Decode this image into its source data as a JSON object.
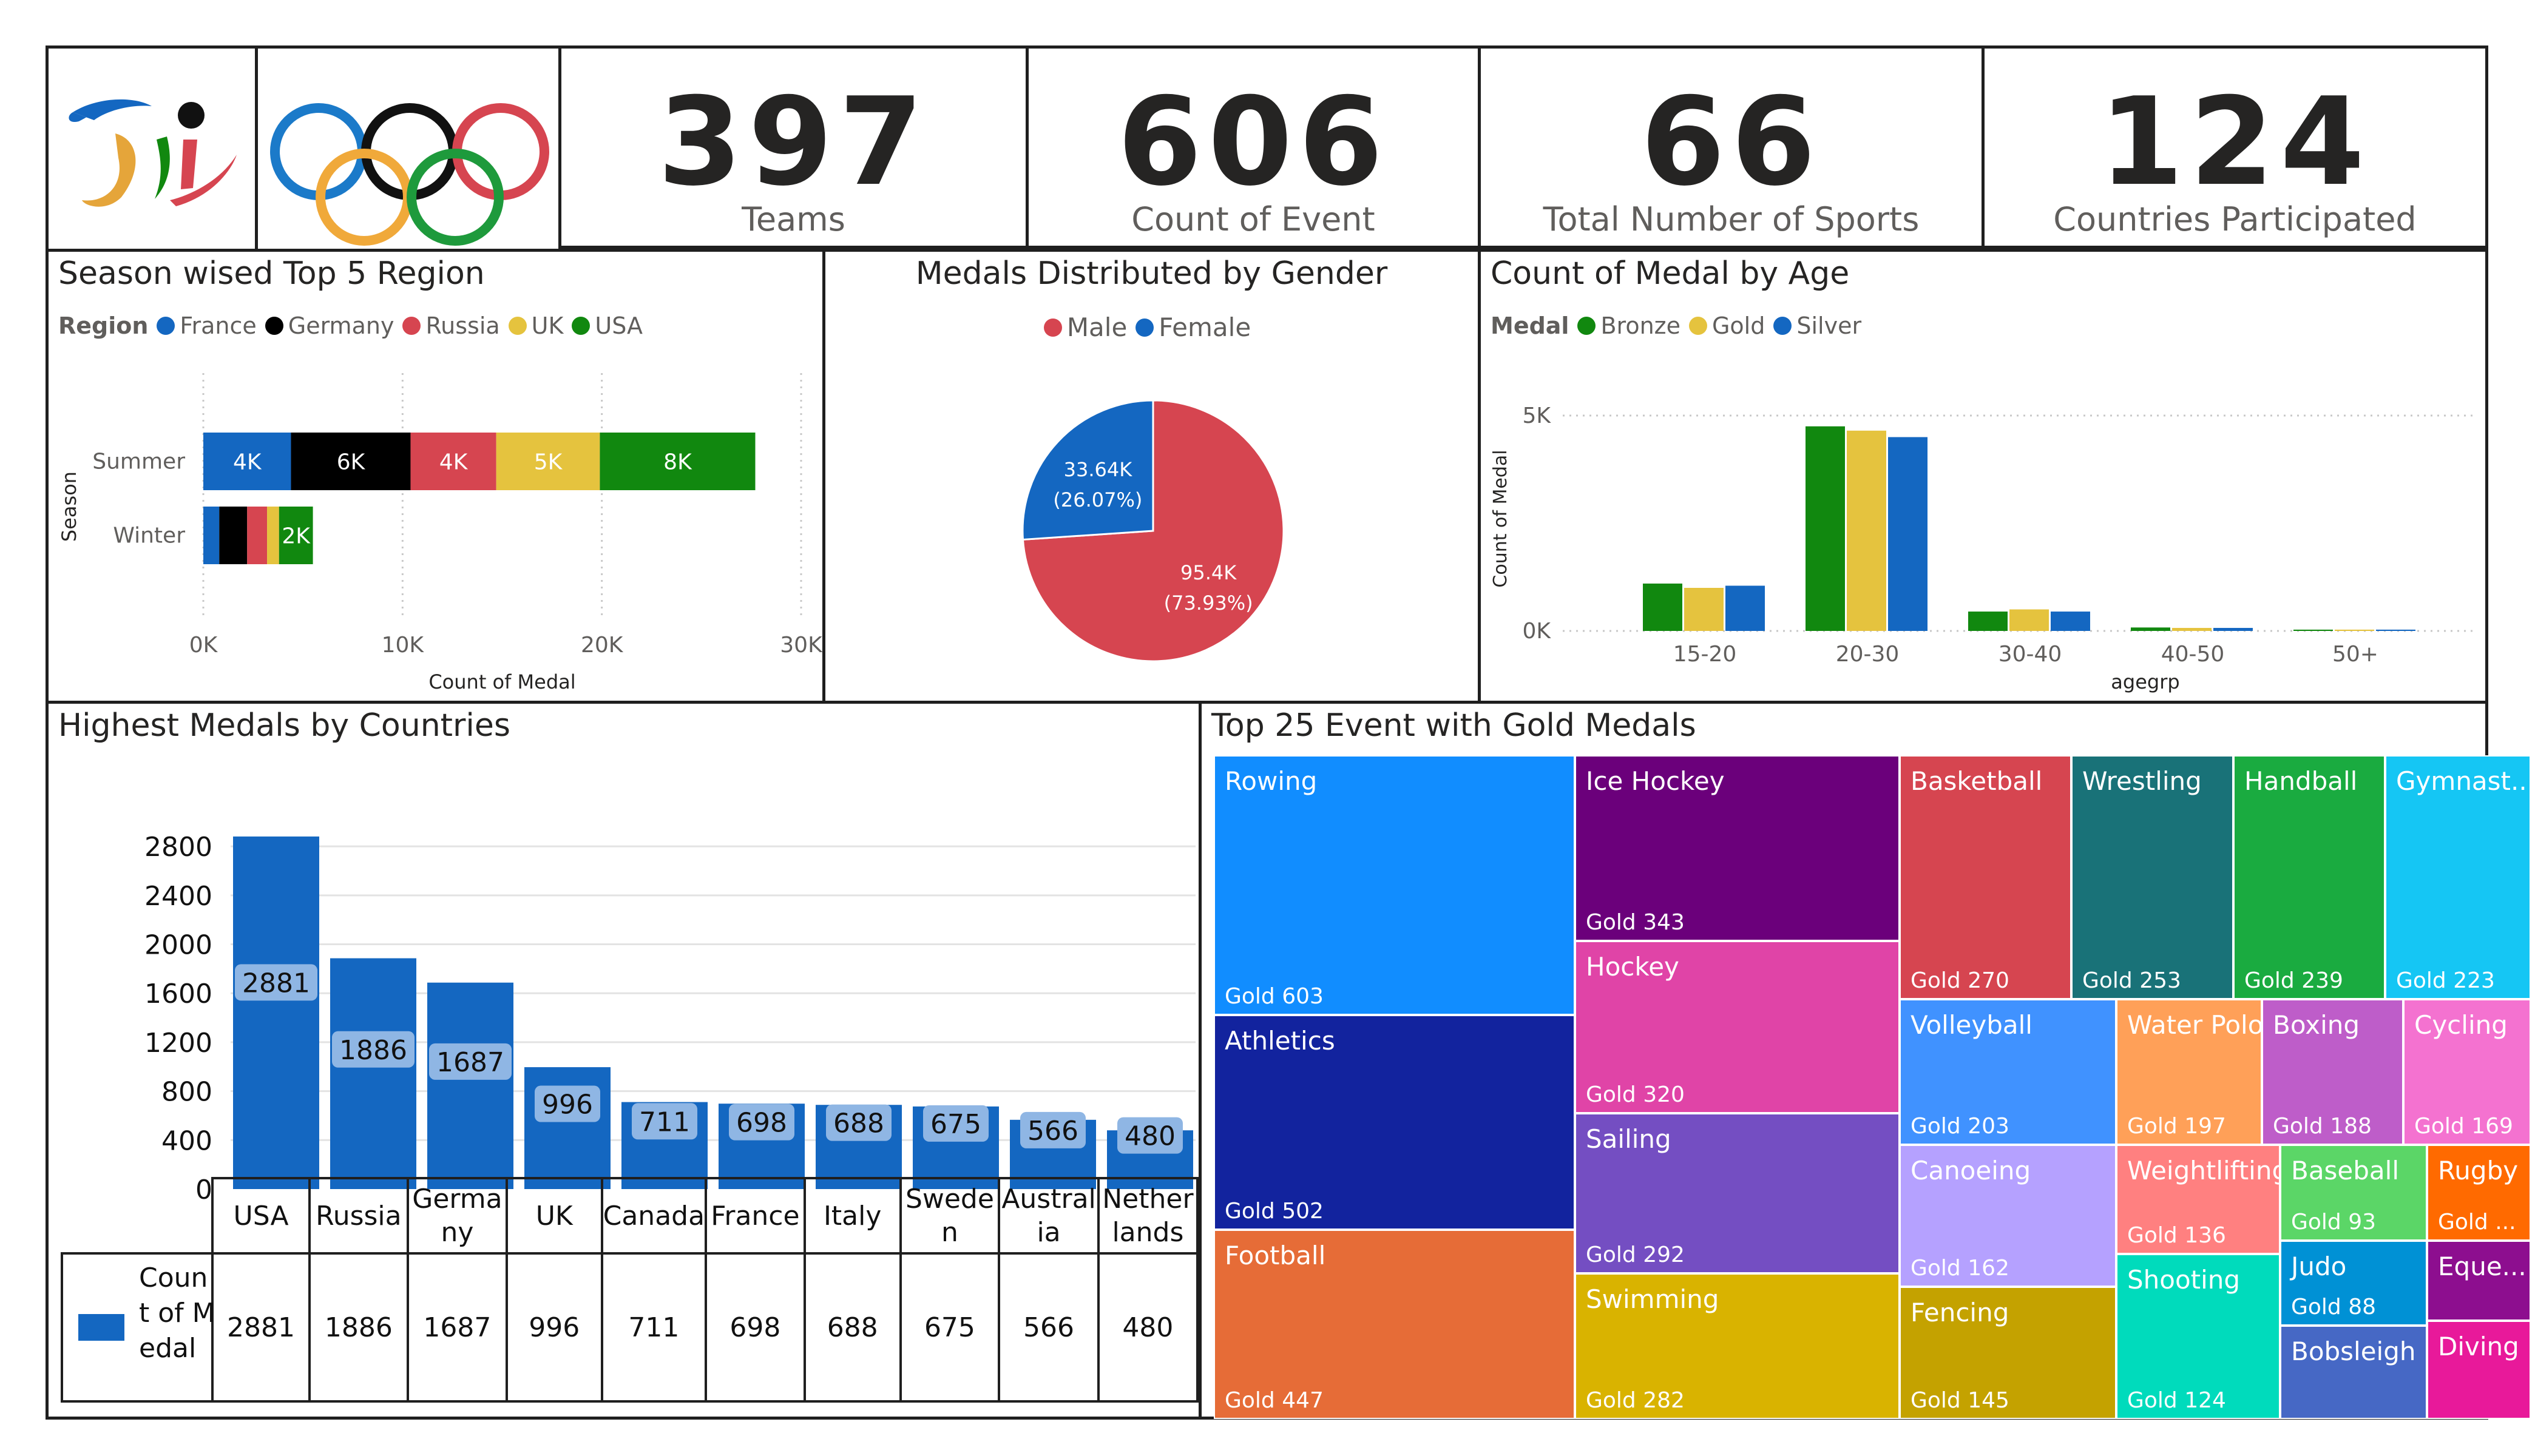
{
  "colors": {
    "france": "#1467c1",
    "germany": "#000000",
    "russia": "#d64550",
    "uk": "#e5c33e",
    "usa": "#11880f",
    "male": "#d64550",
    "female": "#1467c1",
    "bronze": "#11880f",
    "gold": "#e5c33e",
    "silver": "#1467c1",
    "bar": "#1467c1"
  },
  "logos": {
    "paralympic": "paralympic-logo",
    "olympic": "olympic-rings-logo"
  },
  "kpis": [
    {
      "value": "397",
      "label": "Teams"
    },
    {
      "value": "606",
      "label": "Count of Event"
    },
    {
      "value": "66",
      "label": "Total Number of Sports"
    },
    {
      "value": "124",
      "label": "Countries Participated"
    }
  ],
  "region_chart": {
    "title": "Season wised Top 5 Region",
    "legend_title": "Region",
    "legend": [
      "France",
      "Germany",
      "Russia",
      "UK",
      "USA"
    ]
  },
  "gender_chart": {
    "title": "Medals Distributed by Gender",
    "legend": [
      "Male",
      "Female"
    ]
  },
  "age_chart": {
    "title": "Count of Medal by Age",
    "legend_title": "Medal",
    "legend": [
      "Bronze",
      "Gold",
      "Silver"
    ]
  },
  "country_chart": {
    "title": "Highest Medals by Countries",
    "table_legend": "Count of Medal"
  },
  "treemap": {
    "title": "Top 25 Event with Gold Medals",
    "tiles": [
      {
        "name": "Rowing",
        "value": "Gold 603",
        "color": "#118dff"
      },
      {
        "name": "Athletics",
        "value": "Gold 502",
        "color": "#12239e"
      },
      {
        "name": "Football",
        "value": "Gold 447",
        "color": "#e66c37"
      },
      {
        "name": "Ice Hockey",
        "value": "Gold 343",
        "color": "#6b007b"
      },
      {
        "name": "Hockey",
        "value": "Gold 320",
        "color": "#e044a7"
      },
      {
        "name": "Sailing",
        "value": "Gold 292",
        "color": "#744ec2"
      },
      {
        "name": "Swimming",
        "value": "Gold 282",
        "color": "#d9b300"
      },
      {
        "name": "Basketball",
        "value": "Gold 270",
        "color": "#d64550"
      },
      {
        "name": "Wrestling",
        "value": "Gold 253",
        "color": "#197278"
      },
      {
        "name": "Handball",
        "value": "Gold 239",
        "color": "#1aab40"
      },
      {
        "name": "Gymnast...",
        "value": "Gold 223",
        "color": "#15c6f4"
      },
      {
        "name": "Volleyball",
        "value": "Gold 203",
        "color": "#4092ff"
      },
      {
        "name": "Water Polo",
        "value": "Gold 197",
        "color": "#ffa058"
      },
      {
        "name": "Boxing",
        "value": "Gold 188",
        "color": "#be5dc9"
      },
      {
        "name": "Cycling",
        "value": "Gold 169",
        "color": "#f472d0"
      },
      {
        "name": "Canoeing",
        "value": "Gold 162",
        "color": "#b5a1ff"
      },
      {
        "name": "Fencing",
        "value": "Gold 145",
        "color": "#c4a200"
      },
      {
        "name": "Weightlifting",
        "value": "Gold 136",
        "color": "#ff8080"
      },
      {
        "name": "Shooting",
        "value": "Gold 124",
        "color": "#00dbbc"
      },
      {
        "name": "Baseball",
        "value": "Gold 93",
        "color": "#5bd667"
      },
      {
        "name": "Rugby",
        "value": "Gold ...",
        "color": "#ff6a00"
      },
      {
        "name": "Judo",
        "value": "Gold 88",
        "color": "#0091d5"
      },
      {
        "name": "Bobsleigh",
        "value": "",
        "color": "#4668c5"
      },
      {
        "name": "Eque...",
        "value": "",
        "color": "#8d0e8f"
      },
      {
        "name": "Diving",
        "value": "",
        "color": "#e8199a"
      }
    ]
  },
  "chart_data": [
    {
      "type": "bar",
      "orientation": "horizontal",
      "stacked": true,
      "title": "Season wised Top 5 Region",
      "categories": [
        "Summer",
        "Winter"
      ],
      "series": [
        {
          "name": "France",
          "values": [
            4400,
            800
          ],
          "labels": [
            "4K",
            ""
          ]
        },
        {
          "name": "Germany",
          "values": [
            6000,
            1400
          ],
          "labels": [
            "6K",
            ""
          ]
        },
        {
          "name": "Russia",
          "values": [
            4300,
            1000
          ],
          "labels": [
            "4K",
            ""
          ]
        },
        {
          "name": "UK",
          "values": [
            5200,
            600
          ],
          "labels": [
            "5K",
            ""
          ]
        },
        {
          "name": "USA",
          "values": [
            7800,
            1700
          ],
          "labels": [
            "8K",
            "2K"
          ]
        }
      ],
      "xlabel": "Count of Medal",
      "ylabel": "Season",
      "xlim": [
        0,
        30000
      ],
      "xticks": [
        "0K",
        "10K",
        "20K",
        "30K"
      ],
      "grid": true
    },
    {
      "type": "pie",
      "title": "Medals Distributed by Gender",
      "slices": [
        {
          "name": "Male",
          "value": 95400,
          "label": "95.4K",
          "percent_label": "(73.93%)"
        },
        {
          "name": "Female",
          "value": 33640,
          "label": "33.64K",
          "percent_label": "(26.07%)"
        }
      ]
    },
    {
      "type": "bar",
      "title": "Count of Medal by Age",
      "categories": [
        "15-20",
        "20-30",
        "30-40",
        "40-50",
        "50+"
      ],
      "series": [
        {
          "name": "Bronze",
          "values": [
            1100,
            4750,
            450,
            80,
            30
          ]
        },
        {
          "name": "Gold",
          "values": [
            1000,
            4650,
            500,
            70,
            30
          ]
        },
        {
          "name": "Silver",
          "values": [
            1050,
            4500,
            450,
            70,
            30
          ]
        }
      ],
      "xlabel": "agegrp",
      "ylabel": "Count of Medal",
      "ylim": [
        0,
        5000
      ],
      "yticks": [
        "0K",
        "5K"
      ],
      "grid": true
    },
    {
      "type": "bar",
      "title": "Highest Medals by Countries",
      "categories": [
        "USA",
        "Russia",
        "Germany",
        "UK",
        "Canada",
        "France",
        "Italy",
        "Sweden",
        "Australia",
        "Netherlands"
      ],
      "category_display": [
        [
          "USA"
        ],
        [
          "Russia"
        ],
        [
          "Germa",
          "ny"
        ],
        [
          "UK"
        ],
        [
          "Canada"
        ],
        [
          "France"
        ],
        [
          "Italy"
        ],
        [
          "Swede",
          "n"
        ],
        [
          "Austral",
          "ia"
        ],
        [
          "Nether",
          "lands"
        ]
      ],
      "values": [
        2881,
        1886,
        1687,
        996,
        711,
        698,
        688,
        675,
        566,
        480
      ],
      "series_name": "Count of Medal",
      "ylim": [
        0,
        2800
      ],
      "yticks": [
        "0",
        "400",
        "800",
        "1200",
        "1600",
        "2000",
        "2400",
        "2800"
      ]
    },
    {
      "type": "treemap",
      "title": "Top 25 Event with Gold Medals",
      "items": [
        "Rowing",
        "Athletics",
        "Football",
        "Ice Hockey",
        "Hockey",
        "Sailing",
        "Swimming",
        "Basketball",
        "Wrestling",
        "Handball",
        "Gymnast...",
        "Volleyball",
        "Water Polo",
        "Boxing",
        "Cycling",
        "Canoeing",
        "Fencing",
        "Weightlifting",
        "Shooting",
        "Baseball",
        "Rugby",
        "Judo",
        "Bobsleigh",
        "Eque...",
        "Diving"
      ],
      "values": [
        603,
        502,
        447,
        343,
        320,
        292,
        282,
        270,
        253,
        239,
        223,
        203,
        197,
        188,
        169,
        162,
        145,
        136,
        124,
        93,
        null,
        88,
        null,
        null,
        null
      ]
    }
  ]
}
